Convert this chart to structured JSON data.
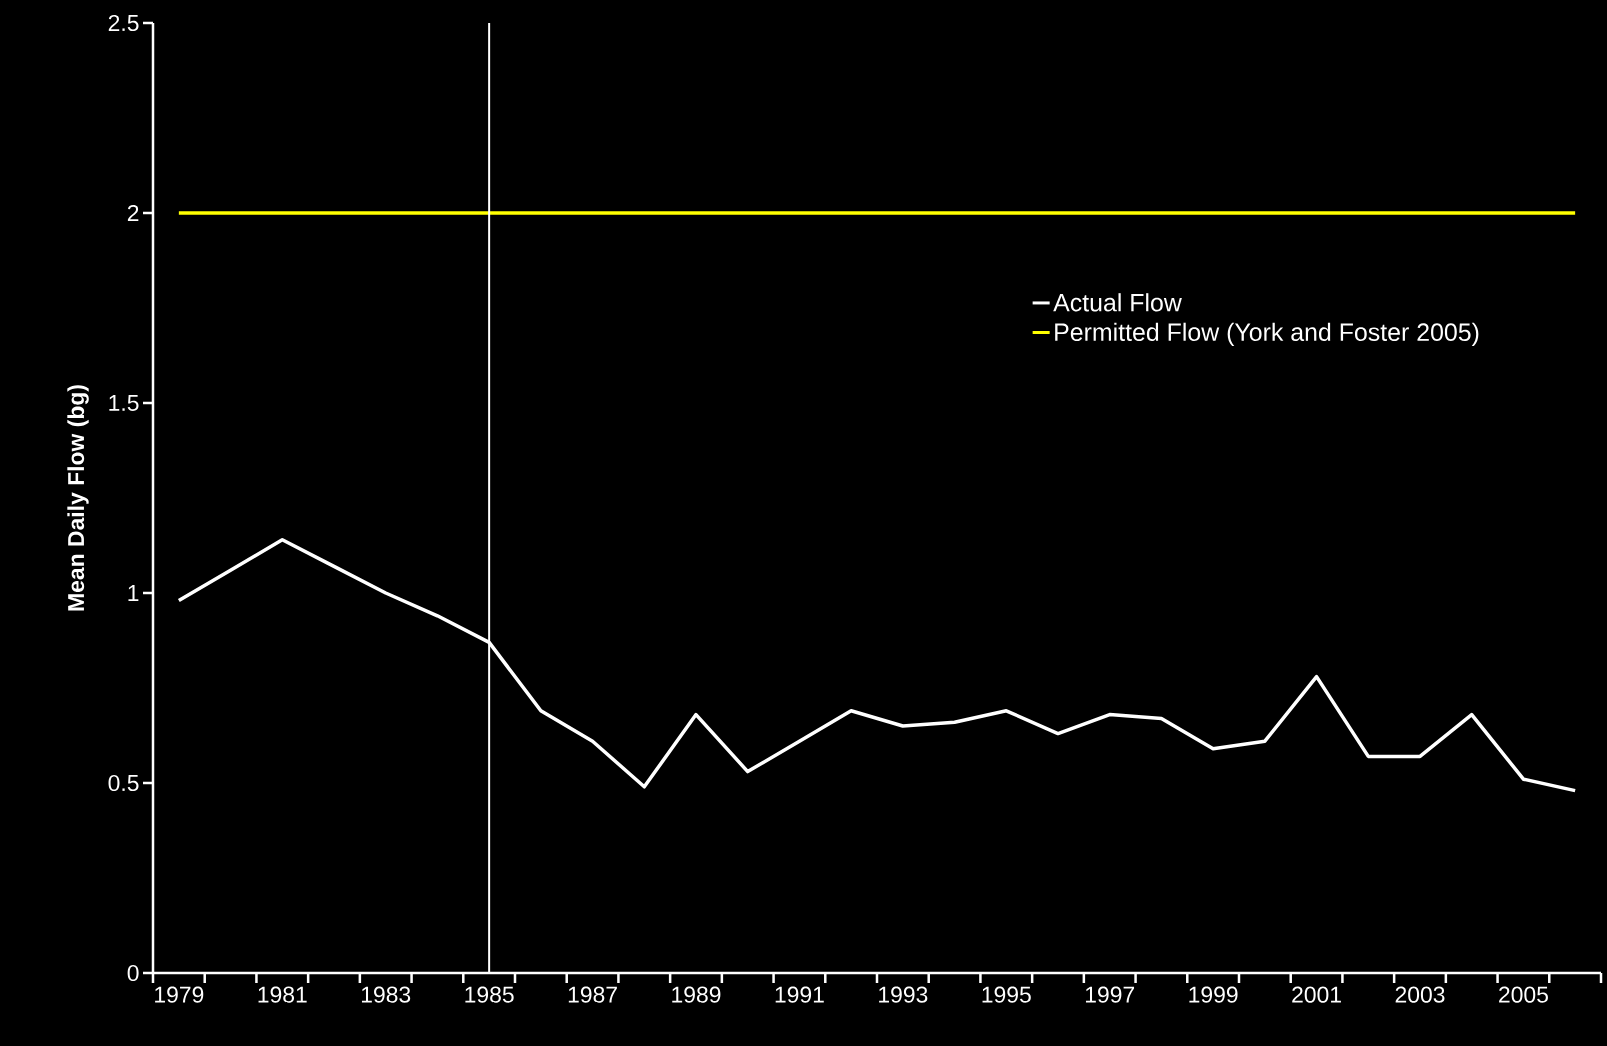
{
  "chart_data": {
    "type": "line",
    "ylabel": "Mean Daily Flow (bg)",
    "categories": [
      "1979",
      null,
      "1981",
      null,
      "1983",
      null,
      "1985",
      null,
      "1987",
      null,
      "1989",
      null,
      "1991",
      null,
      "1993",
      null,
      "1995",
      null,
      "1997",
      null,
      "1999",
      null,
      "2001",
      null,
      "2003",
      null,
      "2005",
      null
    ],
    "series": [
      {
        "name": "Actual Flow",
        "color": "#ffffff",
        "values": [
          0.98,
          1.06,
          1.14,
          1.07,
          1.0,
          0.94,
          0.87,
          0.69,
          0.61,
          0.49,
          0.68,
          0.53,
          0.61,
          0.69,
          0.65,
          0.66,
          0.69,
          0.63,
          0.68,
          0.67,
          0.59,
          0.61,
          0.78,
          0.57,
          0.57,
          0.68,
          0.51,
          0.48
        ]
      },
      {
        "name": "Permitted Flow (York and Foster 2005)",
        "color": "#ffff00",
        "values": [
          2,
          2,
          2,
          2,
          2,
          2,
          2,
          2,
          2,
          2,
          2,
          2,
          2,
          2,
          2,
          2,
          2,
          2,
          2,
          2,
          2,
          2,
          2,
          2,
          2,
          2,
          2,
          2
        ]
      }
    ],
    "ylim": [
      0,
      2.5
    ],
    "yticks": [
      0,
      0.5,
      1,
      1.5,
      2,
      2.5
    ],
    "ref_lines": [
      {
        "axis": "x",
        "value": "1985",
        "color": "#ffffff"
      }
    ],
    "legend": "right",
    "grid": false
  }
}
